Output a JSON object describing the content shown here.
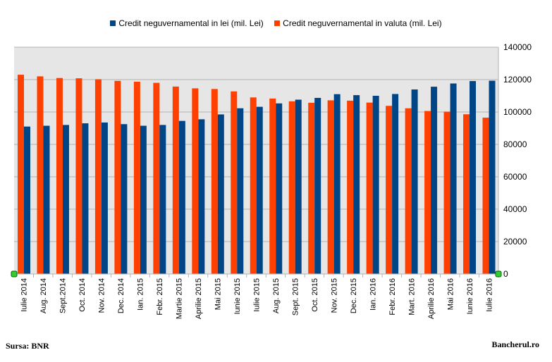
{
  "chart_data": {
    "type": "bar",
    "title": "",
    "xlabel": "",
    "ylabel": "",
    "ylim": [
      0,
      140000
    ],
    "yticks": [
      0,
      20000,
      40000,
      60000,
      80000,
      100000,
      120000,
      140000
    ],
    "y_axis_side": "right",
    "grid": true,
    "legend_position": "top",
    "categories": [
      "Iulie 2014",
      "Aug. 2014",
      "Sept.2014",
      "Oct. 2014",
      "Nov. 2014",
      "Dec. 2014",
      "Ian. 2015",
      "Febr. 2015",
      "Martie 2015",
      "Aprilie 2015",
      "Mai 2015",
      "Iunie 2015",
      "Iulie 2015",
      "Aug. 2015",
      "Sept. 2015",
      "Oct. 2015",
      "Nov. 2015",
      "Dec. 2015",
      "Ian. 2016",
      "Febr. 2016",
      "Mart. 2016",
      "Aprilie 2016",
      "Mai 2016",
      "Iunie 2016",
      "Iulie 2016"
    ],
    "series": [
      {
        "name": "Credit neguvernamental in valuta (mil. Lei)",
        "color": "#ff4000",
        "values": [
          123000,
          122000,
          121000,
          120800,
          120200,
          119200,
          118700,
          118000,
          115700,
          114600,
          114200,
          112700,
          109000,
          108300,
          106600,
          105700,
          107200,
          107000,
          105800,
          103800,
          102300,
          100600,
          100200,
          98600,
          96500
        ]
      },
      {
        "name": "Credit neguvernamental in lei (mil. Lei)",
        "color": "#004586",
        "values": [
          91000,
          91500,
          92000,
          93000,
          93500,
          92500,
          91500,
          92000,
          94500,
          95500,
          98500,
          102300,
          103200,
          105300,
          107600,
          108700,
          111000,
          110400,
          110000,
          111100,
          113900,
          115600,
          117600,
          119100,
          119300
        ]
      }
    ]
  },
  "legend": {
    "items": [
      {
        "label": "Credit neguvernamental in lei (mil. Lei)",
        "color": "#004586"
      },
      {
        "label": "Credit neguvernamental in valuta (mil. Lei)",
        "color": "#ff4000"
      }
    ]
  },
  "footer": {
    "source": "Sursa: BNR",
    "brand": "Bancherul.ro"
  }
}
